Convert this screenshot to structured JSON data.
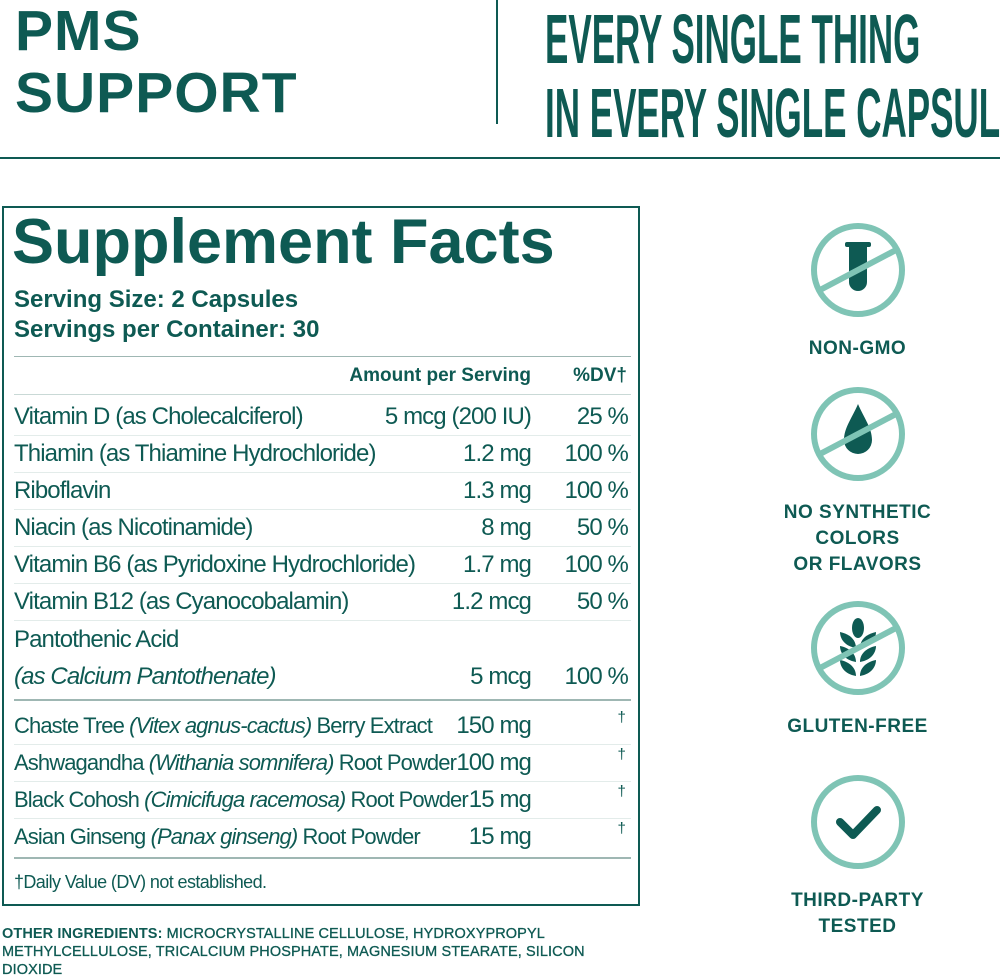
{
  "header": {
    "product_line1": "PMS",
    "product_line2": "SUPPORT",
    "tagline_line1": "EVERY SINGLE THING",
    "tagline_line2": "IN EVERY SINGLE CAPSULE"
  },
  "colors": {
    "primary": "#0e5a53",
    "accent": "#7fc4b5"
  },
  "facts": {
    "title": "Supplement Facts",
    "serving_size": "Serving Size: 2 Capsules",
    "servings_per_container": "Servings per Container: 30",
    "col_amount": "Amount per Serving",
    "col_dv": "%DV†",
    "vitamins": [
      {
        "name": "Vitamin D (as Cholecalciferol)",
        "amount": "5 mcg (200 IU)",
        "dv": "25 %"
      },
      {
        "name": "Thiamin (as Thiamine Hydrochloride)",
        "amount": "1.2 mg",
        "dv": "100 %"
      },
      {
        "name": "Riboflavin",
        "amount": "1.3 mg",
        "dv": "100 %"
      },
      {
        "name": "Niacin (as Nicotinamide)",
        "amount": "8 mg",
        "dv": "50 %"
      },
      {
        "name": "Vitamin B6 (as Pyridoxine Hydrochloride)",
        "amount": "1.7 mg",
        "dv": "100 %"
      },
      {
        "name": "Vitamin B12 (as Cyanocobalamin)",
        "amount": "1.2 mcg",
        "dv": "50 %"
      }
    ],
    "pantothenic": {
      "name": "Pantothenic Acid",
      "source": "(as Calcium Pantothenate)",
      "amount": "5 mcg",
      "dv": "100 %"
    },
    "botanicals": [
      {
        "name": "Chaste Tree",
        "latin": "(Vitex agnus-cactus)",
        "part": "Berry Extract",
        "amount": "150 mg",
        "dv": "†"
      },
      {
        "name": "Ashwagandha",
        "latin": "(Withania somnifera)",
        "part": "Root Powder",
        "amount": "100 mg",
        "dv": "†"
      },
      {
        "name": "Black Cohosh",
        "latin": "(Cimicifuga racemosa)",
        "part": "Root Powder",
        "amount": "15 mg",
        "dv": "†"
      },
      {
        "name": "Asian Ginseng",
        "latin": "(Panax ginseng)",
        "part": "Root Powder",
        "amount": "15 mg",
        "dv": "†"
      }
    ],
    "footnote": "†Daily Value (DV) not established."
  },
  "other_ingredients": {
    "label": "OTHER INGREDIENTS:",
    "text": "MICROCRYSTALLINE CELLULOSE, HYDROXYPROPYL METHYLCELLULOSE, TRICALCIUM PHOSPHATE, MAGNESIUM STEARATE, SILICON DIOXIDE"
  },
  "badges": [
    {
      "icon": "test-tube-crossed-icon",
      "line1": "NON-GMO"
    },
    {
      "icon": "drop-crossed-icon",
      "line1": "NO SYNTHETIC",
      "line2": "COLORS",
      "line3": "OR FLAVORS"
    },
    {
      "icon": "wheat-crossed-icon",
      "line1": "GLUTEN-FREE"
    },
    {
      "icon": "checkmark-icon",
      "line1": "THIRD-PARTY",
      "line2": "TESTED"
    }
  ]
}
